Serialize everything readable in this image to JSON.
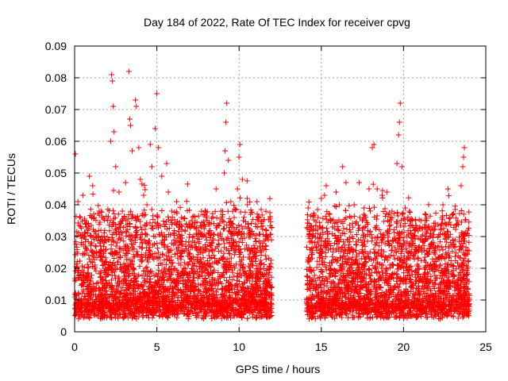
{
  "chart_data": {
    "type": "scatter",
    "title": "Day 184 of 2022, Rate Of TEC Index for receiver cpvg",
    "xlabel": "GPS time / hours",
    "ylabel": "ROTI / TECUs",
    "xlim": [
      0,
      25
    ],
    "ylim": [
      0,
      0.09
    ],
    "x_ticks": [
      "0",
      "5",
      "10",
      "15",
      "20",
      "25"
    ],
    "y_ticks": [
      "0",
      "0.01",
      "0.02",
      "0.03",
      "0.04",
      "0.05",
      "0.06",
      "0.07",
      "0.08",
      "0.09"
    ],
    "x_tick_values": [
      0,
      5,
      10,
      15,
      20,
      25
    ],
    "y_tick_values": [
      0,
      0.01,
      0.02,
      0.03,
      0.04,
      0.05,
      0.06,
      0.07,
      0.08,
      0.09
    ],
    "grid": true,
    "marker": "+",
    "color": "#ff0000",
    "data_segments": [
      {
        "x_start": 0.0,
        "x_end": 12.0
      },
      {
        "x_start": 14.1,
        "x_end": 24.0
      }
    ],
    "series": [
      {
        "points": [
          [
            0.05,
            0.056
          ],
          [
            0.2,
            0.041
          ],
          [
            0.35,
            0.036
          ],
          [
            0.5,
            0.043
          ],
          [
            0.7,
            0.033
          ],
          [
            0.9,
            0.049
          ],
          [
            1.1,
            0.046
          ],
          [
            1.3,
            0.03
          ],
          [
            1.5,
            0.038
          ],
          [
            1.8,
            0.028
          ],
          [
            2.0,
            0.035
          ],
          [
            2.2,
            0.06
          ],
          [
            2.25,
            0.081
          ],
          [
            2.3,
            0.079
          ],
          [
            2.35,
            0.071
          ],
          [
            2.4,
            0.063
          ],
          [
            2.5,
            0.052
          ],
          [
            2.7,
            0.044
          ],
          [
            2.9,
            0.038
          ],
          [
            3.1,
            0.047
          ],
          [
            3.3,
            0.082
          ],
          [
            3.35,
            0.067
          ],
          [
            3.4,
            0.065
          ],
          [
            3.5,
            0.057
          ],
          [
            3.7,
            0.073
          ],
          [
            3.75,
            0.071
          ],
          [
            3.9,
            0.058
          ],
          [
            4.0,
            0.048
          ],
          [
            4.2,
            0.043
          ],
          [
            4.4,
            0.04
          ],
          [
            4.6,
            0.059
          ],
          [
            4.7,
            0.052
          ],
          [
            4.9,
            0.064
          ],
          [
            5.0,
            0.075
          ],
          [
            5.1,
            0.058
          ],
          [
            5.3,
            0.049
          ],
          [
            5.6,
            0.053
          ],
          [
            5.7,
            0.044
          ],
          [
            5.9,
            0.038
          ],
          [
            6.2,
            0.041
          ],
          [
            6.5,
            0.036
          ],
          [
            6.8,
            0.034
          ],
          [
            7.1,
            0.035
          ],
          [
            7.4,
            0.031
          ],
          [
            7.7,
            0.033
          ],
          [
            8.0,
            0.036
          ],
          [
            8.3,
            0.034
          ],
          [
            8.6,
            0.045
          ],
          [
            8.9,
            0.038
          ],
          [
            9.1,
            0.05
          ],
          [
            9.15,
            0.057
          ],
          [
            9.2,
            0.066
          ],
          [
            9.25,
            0.072
          ],
          [
            9.35,
            0.054
          ],
          [
            9.5,
            0.041
          ],
          [
            9.7,
            0.036
          ],
          [
            9.9,
            0.045
          ],
          [
            10.0,
            0.055
          ],
          [
            10.05,
            0.059
          ],
          [
            10.2,
            0.048
          ],
          [
            10.5,
            0.042
          ],
          [
            10.7,
            0.037
          ],
          [
            11.0,
            0.034
          ],
          [
            11.3,
            0.028
          ],
          [
            11.6,
            0.024
          ],
          [
            14.2,
            0.039
          ],
          [
            14.4,
            0.033
          ],
          [
            14.6,
            0.028
          ],
          [
            14.8,
            0.036
          ],
          [
            15.0,
            0.042
          ],
          [
            15.2,
            0.043
          ],
          [
            15.3,
            0.046
          ],
          [
            15.5,
            0.037
          ],
          [
            15.7,
            0.033
          ],
          [
            15.9,
            0.044
          ],
          [
            16.1,
            0.04
          ],
          [
            16.3,
            0.052
          ],
          [
            16.5,
            0.047
          ],
          [
            16.8,
            0.036
          ],
          [
            17.0,
            0.04
          ],
          [
            17.3,
            0.047
          ],
          [
            17.6,
            0.039
          ],
          [
            17.9,
            0.045
          ],
          [
            18.1,
            0.058
          ],
          [
            18.2,
            0.059
          ],
          [
            18.4,
            0.045
          ],
          [
            18.7,
            0.043
          ],
          [
            19.0,
            0.044
          ],
          [
            19.3,
            0.038
          ],
          [
            19.6,
            0.053
          ],
          [
            19.7,
            0.062
          ],
          [
            19.75,
            0.066
          ],
          [
            19.8,
            0.072
          ],
          [
            19.9,
            0.052
          ],
          [
            20.1,
            0.039
          ],
          [
            20.4,
            0.035
          ],
          [
            20.7,
            0.03
          ],
          [
            21.0,
            0.033
          ],
          [
            21.4,
            0.031
          ],
          [
            21.8,
            0.032
          ],
          [
            22.1,
            0.03
          ],
          [
            22.4,
            0.04
          ],
          [
            22.7,
            0.045
          ],
          [
            23.0,
            0.037
          ],
          [
            23.3,
            0.035
          ],
          [
            23.5,
            0.046
          ],
          [
            23.6,
            0.052
          ],
          [
            23.65,
            0.055
          ],
          [
            23.7,
            0.058
          ],
          [
            23.9,
            0.032
          ]
        ]
      }
    ]
  }
}
